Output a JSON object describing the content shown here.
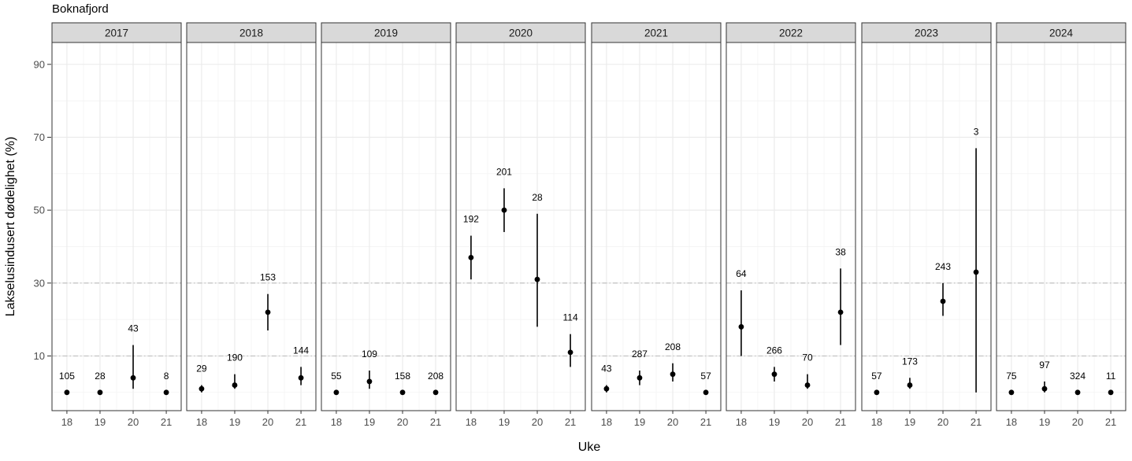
{
  "chart_data": {
    "type": "scatter",
    "title": "Boknafjord",
    "xlabel": "Uke",
    "ylabel": "Lakselusindusert dødelighet (%)",
    "x_ticks": [
      18,
      19,
      20,
      21
    ],
    "y_ticks": [
      10,
      30,
      50,
      70,
      90
    ],
    "xlim": [
      17.55,
      21.45
    ],
    "ylim": [
      -5,
      96
    ],
    "reference_lines": [
      10,
      30
    ],
    "grid": true,
    "panels": [
      {
        "label": "2017",
        "points": [
          {
            "week": 18,
            "value": 0,
            "low": 0,
            "high": 0,
            "n": "105"
          },
          {
            "week": 19,
            "value": 0,
            "low": 0,
            "high": 0,
            "n": "28"
          },
          {
            "week": 20,
            "value": 4,
            "low": 1,
            "high": 13,
            "n": "43"
          },
          {
            "week": 21,
            "value": 0,
            "low": 0,
            "high": 0,
            "n": "8"
          }
        ]
      },
      {
        "label": "2018",
        "points": [
          {
            "week": 18,
            "value": 1,
            "low": 0,
            "high": 2,
            "n": "29"
          },
          {
            "week": 19,
            "value": 2,
            "low": 1,
            "high": 5,
            "n": "190"
          },
          {
            "week": 20,
            "value": 22,
            "low": 17,
            "high": 27,
            "n": "153"
          },
          {
            "week": 21,
            "value": 4,
            "low": 2,
            "high": 7,
            "n": "144"
          }
        ]
      },
      {
        "label": "2019",
        "points": [
          {
            "week": 18,
            "value": 0,
            "low": 0,
            "high": 0,
            "n": "55"
          },
          {
            "week": 19,
            "value": 3,
            "low": 1,
            "high": 6,
            "n": "109"
          },
          {
            "week": 20,
            "value": 0,
            "low": 0,
            "high": 0,
            "n": "158"
          },
          {
            "week": 21,
            "value": 0,
            "low": 0,
            "high": 0,
            "n": "208"
          }
        ]
      },
      {
        "label": "2020",
        "points": [
          {
            "week": 18,
            "value": 37,
            "low": 31,
            "high": 43,
            "n": "192"
          },
          {
            "week": 19,
            "value": 50,
            "low": 44,
            "high": 56,
            "n": "201"
          },
          {
            "week": 20,
            "value": 31,
            "low": 18,
            "high": 49,
            "n": "28"
          },
          {
            "week": 21,
            "value": 11,
            "low": 7,
            "high": 16,
            "n": "114"
          }
        ]
      },
      {
        "label": "2021",
        "points": [
          {
            "week": 18,
            "value": 1,
            "low": 0,
            "high": 2,
            "n": "43"
          },
          {
            "week": 19,
            "value": 4,
            "low": 2,
            "high": 6,
            "n": "287"
          },
          {
            "week": 20,
            "value": 5,
            "low": 3,
            "high": 8,
            "n": "208"
          },
          {
            "week": 21,
            "value": 0,
            "low": 0,
            "high": 0,
            "n": "57"
          }
        ]
      },
      {
        "label": "2022",
        "points": [
          {
            "week": 18,
            "value": 18,
            "low": 10,
            "high": 28,
            "n": "64"
          },
          {
            "week": 19,
            "value": 5,
            "low": 3,
            "high": 7,
            "n": "266"
          },
          {
            "week": 20,
            "value": 2,
            "low": 1,
            "high": 5,
            "n": "70"
          },
          {
            "week": 21,
            "value": 22,
            "low": 13,
            "high": 34,
            "n": "38"
          }
        ]
      },
      {
        "label": "2023",
        "points": [
          {
            "week": 18,
            "value": 0,
            "low": 0,
            "high": 0,
            "n": "57"
          },
          {
            "week": 19,
            "value": 2,
            "low": 1,
            "high": 4,
            "n": "173"
          },
          {
            "week": 20,
            "value": 25,
            "low": 21,
            "high": 30,
            "n": "243"
          },
          {
            "week": 21,
            "value": 33,
            "low": 0,
            "high": 67,
            "n": "3"
          }
        ]
      },
      {
        "label": "2024",
        "points": [
          {
            "week": 18,
            "value": 0,
            "low": 0,
            "high": 0,
            "n": "75"
          },
          {
            "week": 19,
            "value": 1,
            "low": 0,
            "high": 3,
            "n": "97"
          },
          {
            "week": 20,
            "value": 0,
            "low": 0,
            "high": 0,
            "n": "324"
          },
          {
            "week": 21,
            "value": 0,
            "low": 0,
            "high": 0,
            "n": "11"
          }
        ]
      }
    ]
  }
}
